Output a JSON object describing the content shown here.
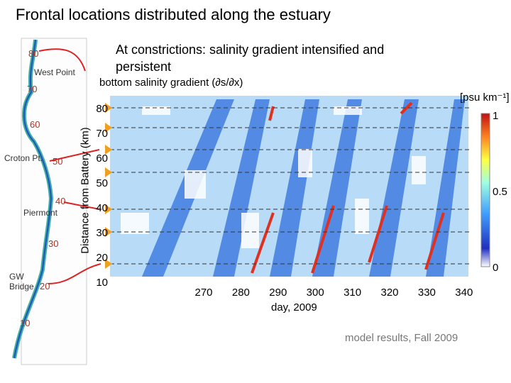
{
  "title": "Frontal locations distributed along the estuary",
  "annotation": "At constrictions: salinity gradient intensified and persistent",
  "map": {
    "places": [
      "West Point",
      "Croton Pt.",
      "Piermont",
      "GW Bridge"
    ],
    "km_labels": [
      80,
      70,
      60,
      50,
      40,
      30,
      20,
      10
    ]
  },
  "heatmap": {
    "title": "bottom salinity gradient (∂s/∂x)",
    "ylabel": "Distance from Battery (km)",
    "xlabel": "day, 2009",
    "yticks": [
      80,
      70,
      60,
      50,
      40,
      30,
      20,
      10
    ],
    "xticks": [
      270,
      280,
      290,
      300,
      310,
      320,
      330,
      340
    ],
    "colorbar": {
      "unit": "[psu km⁻¹]",
      "ticks": [
        1,
        0.5,
        0
      ]
    }
  },
  "caption": "model results, Fall 2009"
}
